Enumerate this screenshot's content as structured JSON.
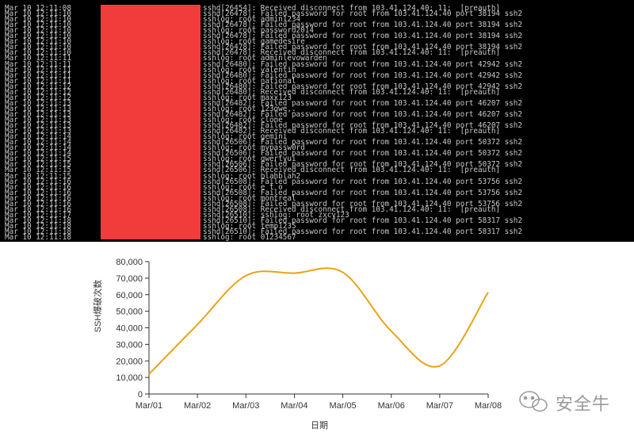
{
  "terminal": {
    "lines": [
      {
        "ts": "Mar 10 12:11:08",
        "msg": "sshd[26454]: Received disconnect from 103.41.124.40: 11:  [preauth]"
      },
      {
        "ts": "Mar 10 12:11:10",
        "msg": "sshd[26478]: Failed password for root from 103.41.124.40 port 38194 ssh2"
      },
      {
        "ts": "Mar 10 12:11:10",
        "msg": "sshlog: root admin1234"
      },
      {
        "ts": "Mar 10 12:11:10",
        "msg": "sshd[26478]: Failed password for root from 103.41.124.40 port 38194 ssh2"
      },
      {
        "ts": "Mar 10 12:11:10",
        "msg": "sshlog: root password2014"
      },
      {
        "ts": "Mar 10 12:11:10",
        "msg": "sshd[26478]: Failed password for root from 103.41.124.40 port 38194 ssh2"
      },
      {
        "ts": "Mar 10 12:11:10",
        "msg": "sshlog: root gamedesire"
      },
      {
        "ts": "Mar 10 12:11:10",
        "msg": "sshd[26478]: Failed password for root from 103.41.124.40 port 38194 ssh2"
      },
      {
        "ts": "Mar 10 12:11:10",
        "msg": "sshd[26478]: Received disconnect from 103.41.124.40: 11:  [preauth]"
      },
      {
        "ts": "Mar 10 12:11:11",
        "msg": "sshlog: root adminlevowarden"
      },
      {
        "ts": "Mar 10 12:11:11",
        "msg": "sshd[26480]: Failed password for root from 103.41.124.40 port 42942 ssh2"
      },
      {
        "ts": "Mar 10 12:11:11",
        "msg": "sshlog: root valentin"
      },
      {
        "ts": "Mar 10 12:11:11",
        "msg": "sshd[26480]: Failed password for root from 103.41.124.40 port 42942 ssh2"
      },
      {
        "ts": "Mar 10 12:11:11",
        "msg": "sshlog: root national"
      },
      {
        "ts": "Mar 10 12:11:12",
        "msg": "sshd[26480]: Failed password for root from 103.41.124.40 port 42942 ssh2"
      },
      {
        "ts": "Mar 10 12:11:12",
        "msg": "sshd[26480]: Received disconnect from 103.41.124.40: 11:  [preauth]"
      },
      {
        "ts": "Mar 10 12:11:12",
        "msg": "sshlog: root maxx123"
      },
      {
        "ts": "Mar 10 12:11:13",
        "msg": "sshd[26482]: Failed password for root from 103.41.124.40 port 46207 ssh2"
      },
      {
        "ts": "Mar 10 12:11:13",
        "msg": "sshlog: root 123qwe,."
      },
      {
        "ts": "Mar 10 12:11:13",
        "msg": "sshd[26482]: Failed password for root from 103.41.124.40 port 46207 ssh2"
      },
      {
        "ts": "Mar 10 12:11:13",
        "msg": "sshlog: root clone"
      },
      {
        "ts": "Mar 10 12:11:13",
        "msg": "sshd[26482]: Failed password for root from 103.41.124.40 port 46207 ssh2"
      },
      {
        "ts": "Mar 10 12:11:13",
        "msg": "sshd[26482]: Received disconnect from 103.41.124.40: 11:  [preauth]"
      },
      {
        "ts": "Mar 10 12:11:14",
        "msg": "sshlog: root gemini"
      },
      {
        "ts": "Mar 10 12:11:14",
        "msg": "sshd[26506]: Failed password for root from 103.41.124.40 port 50372 ssh2"
      },
      {
        "ts": "Mar 10 12:11:14",
        "msg": "sshlog: root mypassw0rd"
      },
      {
        "ts": "Mar 10 12:11:14",
        "msg": "sshd[26506]: Failed password for root from 103.41.124.40 port 50372 ssh2"
      },
      {
        "ts": "Mar 10 12:11:15",
        "msg": "sshlog: root qwertyui"
      },
      {
        "ts": "Mar 10 12:11:15",
        "msg": "sshd[26506]: Failed password for root from 103.41.124.40 port 50372 ssh2"
      },
      {
        "ts": "Mar 10 12:11:15",
        "msg": "sshd[26506]: Received disconnect from 103.41.124.40: 11:  [preauth]"
      },
      {
        "ts": "Mar 10 12:11:15",
        "msg": "sshlog: root blahblah2"
      },
      {
        "ts": "Mar 10 12:11:16",
        "msg": "sshd[26508]: Failed password for root from 103.41.124.40 port 53756 ssh2"
      },
      {
        "ts": "Mar 10 12:11:16",
        "msg": "sshlog: root e t o"
      },
      {
        "ts": "Mar 10 12:11:16",
        "msg": "sshd[26508]: Failed password for root from 103.41.124.40 port 53756 ssh2"
      },
      {
        "ts": "Mar 10 12:11:16",
        "msg": "sshlog: root montreal"
      },
      {
        "ts": "Mar 10 12:11:16",
        "msg": "sshd[26508]: Failed password for root from 103.41.124.40 port 53756 ssh2"
      },
      {
        "ts": "Mar 10 12:11:16",
        "msg": "sshd[26508]: Received disconnect from 103.41.124.40: 11:  [preauth]"
      },
      {
        "ts": "Mar 10 12:11:17",
        "msg": "sshd[26510]: sshlog: root zxcv123"
      },
      {
        "ts": "Mar 10 12:11:18",
        "msg": "sshd[26510]: Failed password for root from 103.41.124.40 port 58317 ssh2"
      },
      {
        "ts": "Mar 10 12:11:18",
        "msg": "sshlog: root temp1235"
      },
      {
        "ts": "Mar 10 12:11:18",
        "msg": "sshd[26510]: Failed password for root from 103.41.124.40 port 58317 ssh2"
      },
      {
        "ts": "Mar 10 12:11:18",
        "msg": "sshlog: root 01234567"
      }
    ]
  },
  "colors": {
    "terminal_bg": "#000000",
    "terminal_text": "#c9c9c9",
    "redaction": "#f23c3c",
    "series_line": "#e8a317",
    "axis": "#333333"
  },
  "chart_data": {
    "type": "line",
    "categories": [
      "Mar/01",
      "Mar/02",
      "Mar/03",
      "Mar/04",
      "Mar/05",
      "Mar/06",
      "Mar/07",
      "Mar/08"
    ],
    "values": [
      12000,
      42000,
      71500,
      73000,
      73500,
      38000,
      17000,
      61500
    ],
    "xlabel": "日期",
    "ylabel": "SSH爆破次数",
    "ylim": [
      0,
      80000
    ],
    "yticks": [
      0,
      10000,
      20000,
      30000,
      40000,
      50000,
      60000,
      70000,
      80000
    ],
    "ytick_labels": [
      "0",
      "10,000",
      "20,000",
      "30,000",
      "40,000",
      "50,000",
      "60,000",
      "70,000",
      "80,000"
    ],
    "grid": false,
    "curve": "smooth"
  },
  "watermark": {
    "text": "安全牛",
    "icon": "wechat-icon"
  }
}
